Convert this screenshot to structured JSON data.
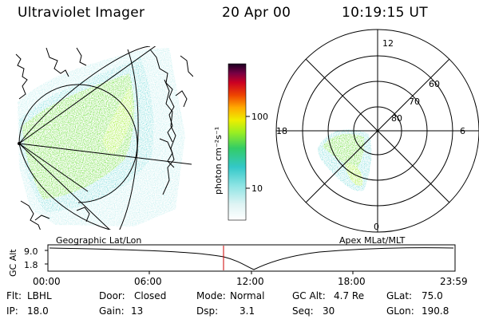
{
  "header": {
    "title": "Ultraviolet Imager",
    "date": "20 Apr 00",
    "time": "10:19:15 UT"
  },
  "colorbar": {
    "unit_label": "photon cm⁻²s⁻¹",
    "ticks": [
      "100",
      "10"
    ]
  },
  "polar_plot": {
    "mlt_labels": [
      "12",
      "18",
      "6",
      "0"
    ],
    "mlat_labels": [
      "60",
      "70",
      "80"
    ]
  },
  "projections": {
    "left": "Geographic Lat/Lon",
    "right": "Apex MLat/MLT"
  },
  "altitude_strip": {
    "ylabel": "GC Alt",
    "y_ticks": [
      "9.0",
      "1.8"
    ],
    "x_ticks": [
      "00:00",
      "06:00",
      "12:00",
      "18:00",
      "23:59"
    ]
  },
  "footer": {
    "flt_label": "Flt:",
    "flt_value": "LBHL",
    "door_label": "Door:",
    "door_value": "Closed",
    "mode_label": "Mode:",
    "mode_value": "Normal",
    "gcalt_label": "GC Alt:",
    "gcalt_value": "4.7 Re",
    "glat_label": "GLat:",
    "glat_value": "75.0",
    "ip_label": "IP:",
    "ip_value": "18.0",
    "gain_label": "Gain:",
    "gain_value": "13",
    "dsp_label": "Dsp:",
    "dsp_value": "3.1",
    "seq_label": "Seq:",
    "seq_value": "30",
    "glon_label": "GLon:",
    "glon_value": "190.8"
  },
  "colors": {
    "colorbar_stops": [
      "#ffffff",
      "#e6f7f7",
      "#8fe6e6",
      "#2ec8c8",
      "#2ecc66",
      "#99ee22",
      "#eeee00",
      "#ffaa00",
      "#ee4400",
      "#cc0022",
      "#660044",
      "#220022"
    ],
    "aurora_main": "#66dd33",
    "aurora_edge": "#33cccc",
    "time_marker": "#cc0000"
  }
}
